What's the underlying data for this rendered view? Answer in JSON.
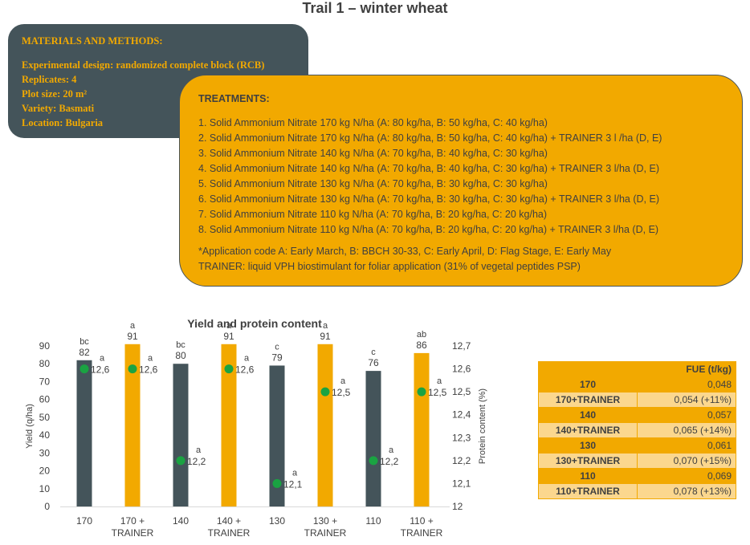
{
  "page_title": "Trail 1 – winter wheat",
  "materials": {
    "heading": "MATERIALS AND METHODS:",
    "lines": [
      "Experimental design: randomized complete block (RCB)",
      "Replicates: 4",
      "Plot size: 20 m²",
      "Variety:  Basmati",
      "Location: Bulgaria"
    ]
  },
  "treatments": {
    "heading": "TREATMENTS:",
    "items": [
      "1. Solid Ammonium Nitrate 170 kg N/ha (A: 80 kg/ha, B: 50 kg/ha, C: 40 kg/ha)",
      "2. Solid Ammonium Nitrate 170 kg N/ha (A: 80 kg/ha, B: 50 kg/ha, C: 40 kg/ha) + TRAINER 3  l /ha (D, E)",
      "3. Solid Ammonium Nitrate 140 kg N/ha (A: 70 kg/ha, B: 40 kg/ha, C: 30 kg/ha)",
      "4. Solid Ammonium Nitrate 140 kg N/ha (A: 70 kg/ha, B: 40 kg/ha, C: 30 kg/ha) + TRAINER 3  l/ha (D, E)",
      "5. Solid Ammonium Nitrate 130 kg N/ha (A: 70 kg/ha, B: 30 kg/ha, C: 30 kg/ha)",
      "6. Solid Ammonium Nitrate 130 kg N/ha (A: 70 kg/ha, B: 30 kg/ha, C: 30 kg/ha) + TRAINER 3  l/ha (D, E)",
      "7. Solid Ammonium Nitrate 110 kg N/ha (A: 70 kg/ha, B: 20 kg/ha, C: 20 kg/ha)",
      "8. Solid Ammonium Nitrate 110 kg N/ha (A: 70 kg/ha, B: 20 kg/ha, C: 20 kg/ha) + TRAINER 3  l/ha (D, E)"
    ],
    "notes": [
      "*Application code A: Early March, B: BBCH 30-33,  C: Early April, D: Flag Stage, E: Early May",
      "TRAINER: liquid VPH biostimulant for foliar application (31% of vegetal peptides PSP)"
    ]
  },
  "chart_data": {
    "type": "bar",
    "title": "Yield and protein content",
    "ylabel": "Yield (q/ha)",
    "y2label": "Protein content (%)",
    "ylim": [
      0,
      90
    ],
    "yticks": [
      "0",
      "10",
      "20",
      "30",
      "40",
      "50",
      "60",
      "70",
      "80",
      "90"
    ],
    "y2lim": [
      12,
      12.7
    ],
    "y2ticks": [
      "12",
      "12,1",
      "12,2",
      "12,3",
      "12,4",
      "12,5",
      "12,6",
      "12,7"
    ],
    "categories": [
      [
        "170"
      ],
      [
        "170 +",
        "TRAINER"
      ],
      [
        "140"
      ],
      [
        "140 +",
        "TRAINER"
      ],
      [
        "130"
      ],
      [
        "130 +",
        "TRAINER"
      ],
      [
        "110"
      ],
      [
        "110 +",
        "TRAINER"
      ]
    ],
    "series": [
      {
        "values": [
          82,
          91,
          80,
          91,
          79,
          91,
          76,
          86
        ],
        "labels": [
          "82",
          "91",
          "80",
          "91",
          "79",
          "91",
          "76",
          "86"
        ],
        "letters": [
          "bc",
          "a",
          "bc",
          "a",
          "c",
          "a",
          "c",
          "ab"
        ]
      },
      {
        "values": [
          12.6,
          12.6,
          12.2,
          12.6,
          12.1,
          12.5,
          12.2,
          12.5
        ],
        "labels": [
          "12,6",
          "12,6",
          "12,2",
          "12,6",
          "12,1",
          "12,5",
          "12,2",
          "12,5"
        ],
        "letters": [
          "a",
          "a",
          "a",
          "a",
          "a",
          "a",
          "a",
          "a"
        ]
      }
    ],
    "colors": {
      "control": "#44545a",
      "trainer": "#f2a900",
      "dot": "#1aa342"
    },
    "grid": false,
    "legend": "none"
  },
  "fue_table": {
    "header": "FUE (t/kg)",
    "rows": [
      {
        "label": "170",
        "value": "0,048"
      },
      {
        "label": "170+TRAINER",
        "value": "0,054 (+11%)"
      },
      {
        "label": "140",
        "value": "0,057"
      },
      {
        "label": "140+TRAINER",
        "value": "0,065 (+14%)"
      },
      {
        "label": "130",
        "value": "0,061"
      },
      {
        "label": "130+TRAINER",
        "value": "0,070 (+15%)"
      },
      {
        "label": "110",
        "value": "0,069"
      },
      {
        "label": "110+TRAINER",
        "value": "0,078 (+13%)"
      }
    ]
  }
}
